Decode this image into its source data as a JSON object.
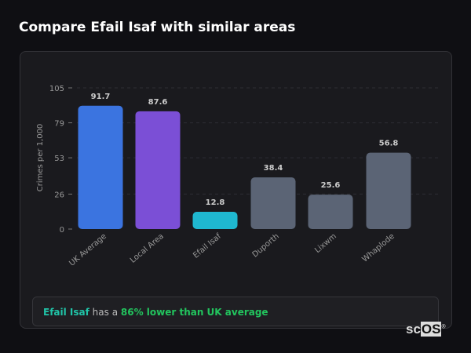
{
  "title": "Compare Efail Isaf with similar areas",
  "chart_data": {
    "type": "bar",
    "categories": [
      "UK Average",
      "Local Area",
      "Efail Isaf",
      "Duporth",
      "Lixwm",
      "Whaplode"
    ],
    "values": [
      91.7,
      87.6,
      12.8,
      38.4,
      25.6,
      56.8
    ],
    "value_labels": [
      "91.7",
      "87.6",
      "12.8",
      "38.4",
      "25.6",
      "56.8"
    ],
    "colors": [
      "#3b74e0",
      "#7b4fd6",
      "#1fb8d0",
      "#5b6475",
      "#5b6475",
      "#5b6475"
    ],
    "ylabel": "Crimes per 1,000",
    "xlabel": "",
    "ylim": [
      0,
      105
    ],
    "yticks": [
      0,
      26,
      53,
      79,
      105
    ],
    "grid": true
  },
  "note": {
    "place": "Efail Isaf",
    "middle": " has a ",
    "comparison": "86% lower than UK average"
  },
  "logo": {
    "sc": "sc",
    "os": "OS",
    "mark": "®"
  }
}
